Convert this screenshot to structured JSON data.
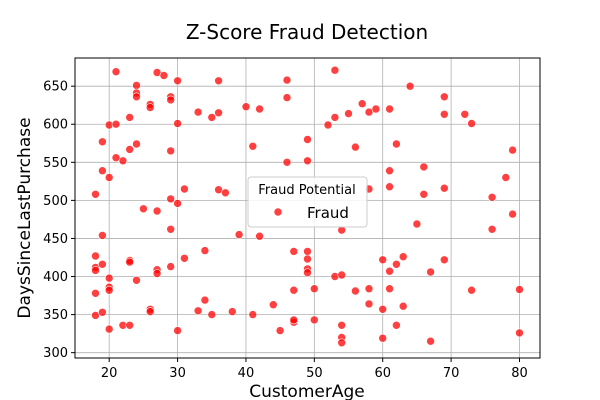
{
  "chart_data": {
    "type": "scatter",
    "title": "Z-Score Fraud Detection",
    "xlabel": "CustomerAge",
    "ylabel": "DaysSinceLastPurchase",
    "xlim": [
      15,
      83
    ],
    "ylim": [
      293,
      687
    ],
    "x_ticks": [
      20,
      30,
      40,
      50,
      60,
      70,
      80
    ],
    "y_ticks": [
      300,
      350,
      400,
      450,
      500,
      550,
      600,
      650
    ],
    "grid": true,
    "legend": {
      "title": "Fraud Potential",
      "placement": "center",
      "entries": [
        "Fraud"
      ]
    },
    "series": [
      {
        "name": "Fraud",
        "color": "#ff0000",
        "points": [
          [
            21,
            669
          ],
          [
            24,
            651
          ],
          [
            24,
            641
          ],
          [
            24,
            636
          ],
          [
            26,
            626
          ],
          [
            26,
            622
          ],
          [
            27,
            668
          ],
          [
            28,
            664
          ],
          [
            29,
            636
          ],
          [
            29,
            632
          ],
          [
            30,
            657
          ],
          [
            36,
            657
          ],
          [
            46,
            658
          ],
          [
            53,
            671
          ],
          [
            64,
            650
          ],
          [
            23,
            609
          ],
          [
            20,
            599
          ],
          [
            21,
            600
          ],
          [
            19,
            577
          ],
          [
            24,
            574
          ],
          [
            23,
            567
          ],
          [
            22,
            552
          ],
          [
            21,
            556
          ],
          [
            30,
            601
          ],
          [
            33,
            616
          ],
          [
            35,
            609
          ],
          [
            36,
            615
          ],
          [
            40,
            623
          ],
          [
            42,
            620
          ],
          [
            46,
            635
          ],
          [
            52,
            599
          ],
          [
            53,
            609
          ],
          [
            55,
            614
          ],
          [
            57,
            627
          ],
          [
            58,
            616
          ],
          [
            59,
            620
          ],
          [
            61,
            620
          ],
          [
            62,
            574
          ],
          [
            69,
            636
          ],
          [
            69,
            613
          ],
          [
            72,
            613
          ],
          [
            73,
            601
          ],
          [
            19,
            539
          ],
          [
            20,
            530
          ],
          [
            18,
            508
          ],
          [
            25,
            489
          ],
          [
            27,
            486
          ],
          [
            29,
            565
          ],
          [
            29,
            502
          ],
          [
            30,
            496
          ],
          [
            31,
            515
          ],
          [
            36,
            514
          ],
          [
            37,
            510
          ],
          [
            41,
            571
          ],
          [
            46,
            550
          ],
          [
            49,
            552
          ],
          [
            49,
            580
          ],
          [
            56,
            570
          ],
          [
            58,
            515
          ],
          [
            61,
            539
          ],
          [
            61,
            518
          ],
          [
            66,
            544
          ],
          [
            66,
            508
          ],
          [
            69,
            516
          ],
          [
            76,
            504
          ],
          [
            78,
            530
          ],
          [
            79,
            566
          ],
          [
            79,
            482
          ],
          [
            19,
            454
          ],
          [
            18,
            427
          ],
          [
            18,
            412
          ],
          [
            18,
            408
          ],
          [
            19,
            416
          ],
          [
            20,
            398
          ],
          [
            20,
            386
          ],
          [
            20,
            382
          ],
          [
            18,
            378
          ],
          [
            23,
            421
          ],
          [
            23,
            419
          ],
          [
            24,
            395
          ],
          [
            27,
            409
          ],
          [
            27,
            404
          ],
          [
            29,
            462
          ],
          [
            29,
            413
          ],
          [
            31,
            424
          ],
          [
            34,
            434
          ],
          [
            39,
            455
          ],
          [
            42,
            453
          ],
          [
            47,
            433
          ],
          [
            47,
            382
          ],
          [
            49,
            433
          ],
          [
            49,
            423
          ],
          [
            49,
            410
          ],
          [
            49,
            405
          ],
          [
            50,
            384
          ],
          [
            53,
            400
          ],
          [
            54,
            402
          ],
          [
            54,
            461
          ],
          [
            56,
            381
          ],
          [
            58,
            384
          ],
          [
            60,
            422
          ],
          [
            61,
            407
          ],
          [
            61,
            384
          ],
          [
            62,
            416
          ],
          [
            63,
            426
          ],
          [
            65,
            469
          ],
          [
            67,
            406
          ],
          [
            69,
            422
          ],
          [
            73,
            382
          ],
          [
            76,
            462
          ],
          [
            80,
            383
          ],
          [
            18,
            349
          ],
          [
            19,
            353
          ],
          [
            20,
            331
          ],
          [
            22,
            336
          ],
          [
            23,
            336
          ],
          [
            26,
            357
          ],
          [
            26,
            354
          ],
          [
            30,
            329
          ],
          [
            33,
            355
          ],
          [
            34,
            369
          ],
          [
            35,
            350
          ],
          [
            38,
            354
          ],
          [
            41,
            350
          ],
          [
            44,
            363
          ],
          [
            45,
            329
          ],
          [
            47,
            340
          ],
          [
            47,
            343
          ],
          [
            50,
            343
          ],
          [
            54,
            336
          ],
          [
            54,
            320
          ],
          [
            54,
            313
          ],
          [
            58,
            364
          ],
          [
            60,
            357
          ],
          [
            60,
            319
          ],
          [
            62,
            336
          ],
          [
            63,
            361
          ],
          [
            67,
            315
          ],
          [
            80,
            326
          ]
        ]
      }
    ]
  }
}
